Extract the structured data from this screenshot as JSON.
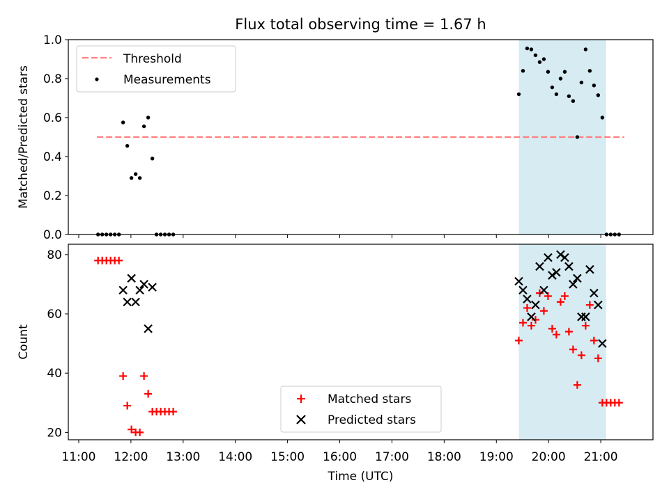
{
  "chart_data": [
    {
      "type": "scatter",
      "title": "Flux total observing time = 1.67 h",
      "ylabel": "Matched/Predicted stars",
      "xlabel": "",
      "x_unit": "hours UTC",
      "xlim": [
        10.8,
        22.0
      ],
      "ylim": [
        0.0,
        1.0
      ],
      "yticks": [
        0.0,
        0.2,
        0.4,
        0.6,
        0.8,
        1.0
      ],
      "ytick_labels": [
        "0.0",
        "0.2",
        "0.4",
        "0.6",
        "0.8",
        "1.0"
      ],
      "shaded_span": [
        19.43,
        21.1
      ],
      "shaded_color": "#add8e6",
      "threshold": {
        "name": "Threshold",
        "y": 0.5,
        "x": [
          11.35,
          21.45
        ],
        "color": "#ff7f7f",
        "style": "dashed"
      },
      "legend": {
        "placement": "top-left",
        "entries": [
          "Threshold",
          "Measurements"
        ]
      },
      "series": [
        {
          "name": "Measurements",
          "color": "#000000",
          "marker": "dot",
          "points": [
            [
              11.37,
              0.0
            ],
            [
              11.45,
              0.0
            ],
            [
              11.53,
              0.0
            ],
            [
              11.61,
              0.0
            ],
            [
              11.69,
              0.0
            ],
            [
              11.77,
              0.0
            ],
            [
              11.85,
              0.575
            ],
            [
              11.93,
              0.455
            ],
            [
              12.01,
              0.29
            ],
            [
              12.09,
              0.31
            ],
            [
              12.17,
              0.29
            ],
            [
              12.25,
              0.555
            ],
            [
              12.33,
              0.6
            ],
            [
              12.41,
              0.39
            ],
            [
              12.49,
              0.0
            ],
            [
              12.57,
              0.0
            ],
            [
              12.65,
              0.0
            ],
            [
              12.73,
              0.0
            ],
            [
              12.81,
              0.0
            ],
            [
              19.43,
              0.72
            ],
            [
              19.51,
              0.84
            ],
            [
              19.59,
              0.955
            ],
            [
              19.67,
              0.95
            ],
            [
              19.75,
              0.92
            ],
            [
              19.83,
              0.885
            ],
            [
              19.91,
              0.9
            ],
            [
              19.99,
              0.835
            ],
            [
              20.07,
              0.755
            ],
            [
              20.15,
              0.72
            ],
            [
              20.23,
              0.8
            ],
            [
              20.31,
              0.835
            ],
            [
              20.39,
              0.71
            ],
            [
              20.47,
              0.685
            ],
            [
              20.55,
              0.5
            ],
            [
              20.63,
              0.78
            ],
            [
              20.71,
              0.95
            ],
            [
              20.79,
              0.84
            ],
            [
              20.87,
              0.765
            ],
            [
              20.95,
              0.715
            ],
            [
              21.03,
              0.6
            ],
            [
              21.11,
              0.0
            ],
            [
              21.19,
              0.0
            ],
            [
              21.27,
              0.0
            ],
            [
              21.35,
              0.0
            ]
          ]
        }
      ]
    },
    {
      "type": "scatter",
      "title": "",
      "ylabel": "Count",
      "xlabel": "Time (UTC)",
      "x_unit": "hours UTC",
      "xlim": [
        10.8,
        22.0
      ],
      "ylim": [
        17.5,
        83.5
      ],
      "yticks": [
        20,
        40,
        60,
        80
      ],
      "ytick_labels": [
        "20",
        "40",
        "60",
        "80"
      ],
      "xticks": [
        11,
        12,
        13,
        14,
        15,
        16,
        17,
        18,
        19,
        20,
        21
      ],
      "xtick_labels": [
        "11:00",
        "12:00",
        "13:00",
        "14:00",
        "15:00",
        "16:00",
        "17:00",
        "18:00",
        "19:00",
        "20:00",
        "21:00"
      ],
      "shaded_span": [
        19.43,
        21.1
      ],
      "shaded_color": "#add8e6",
      "legend": {
        "placement": "bottom-center",
        "entries": [
          "Matched stars",
          "Predicted stars"
        ]
      },
      "series": [
        {
          "name": "Matched stars",
          "color": "#ff0000",
          "marker": "plus",
          "points": [
            [
              11.37,
              78
            ],
            [
              11.45,
              78
            ],
            [
              11.53,
              78
            ],
            [
              11.61,
              78
            ],
            [
              11.69,
              78
            ],
            [
              11.77,
              78
            ],
            [
              11.85,
              39
            ],
            [
              11.93,
              29
            ],
            [
              12.01,
              21
            ],
            [
              12.09,
              20
            ],
            [
              12.17,
              20
            ],
            [
              12.25,
              39
            ],
            [
              12.33,
              33
            ],
            [
              12.41,
              27
            ],
            [
              12.49,
              27
            ],
            [
              12.57,
              27
            ],
            [
              12.65,
              27
            ],
            [
              12.73,
              27
            ],
            [
              12.81,
              27
            ],
            [
              19.43,
              51
            ],
            [
              19.51,
              57
            ],
            [
              19.59,
              62
            ],
            [
              19.67,
              56
            ],
            [
              19.75,
              58
            ],
            [
              19.83,
              67
            ],
            [
              19.91,
              61
            ],
            [
              19.99,
              66
            ],
            [
              20.07,
              55
            ],
            [
              20.15,
              53
            ],
            [
              20.23,
              64
            ],
            [
              20.31,
              66
            ],
            [
              20.39,
              54
            ],
            [
              20.47,
              48
            ],
            [
              20.55,
              36
            ],
            [
              20.63,
              46
            ],
            [
              20.71,
              56
            ],
            [
              20.79,
              63
            ],
            [
              20.87,
              51
            ],
            [
              20.95,
              45
            ],
            [
              21.03,
              30
            ],
            [
              21.11,
              30
            ],
            [
              21.19,
              30
            ],
            [
              21.27,
              30
            ],
            [
              21.35,
              30
            ]
          ]
        },
        {
          "name": "Predicted stars",
          "color": "#000000",
          "marker": "x",
          "points": [
            [
              11.85,
              68
            ],
            [
              11.93,
              64
            ],
            [
              12.01,
              72
            ],
            [
              12.09,
              64
            ],
            [
              12.17,
              68
            ],
            [
              12.25,
              70
            ],
            [
              12.33,
              55
            ],
            [
              12.41,
              69
            ],
            [
              19.43,
              71
            ],
            [
              19.51,
              68
            ],
            [
              19.59,
              65
            ],
            [
              19.67,
              59
            ],
            [
              19.75,
              63
            ],
            [
              19.83,
              76
            ],
            [
              19.91,
              68
            ],
            [
              19.99,
              79
            ],
            [
              20.07,
              73
            ],
            [
              20.15,
              74
            ],
            [
              20.23,
              80
            ],
            [
              20.31,
              79
            ],
            [
              20.39,
              76
            ],
            [
              20.47,
              70
            ],
            [
              20.55,
              72
            ],
            [
              20.63,
              59
            ],
            [
              20.71,
              59
            ],
            [
              20.79,
              75
            ],
            [
              20.87,
              67
            ],
            [
              20.95,
              63
            ],
            [
              21.03,
              50
            ]
          ]
        }
      ]
    }
  ]
}
